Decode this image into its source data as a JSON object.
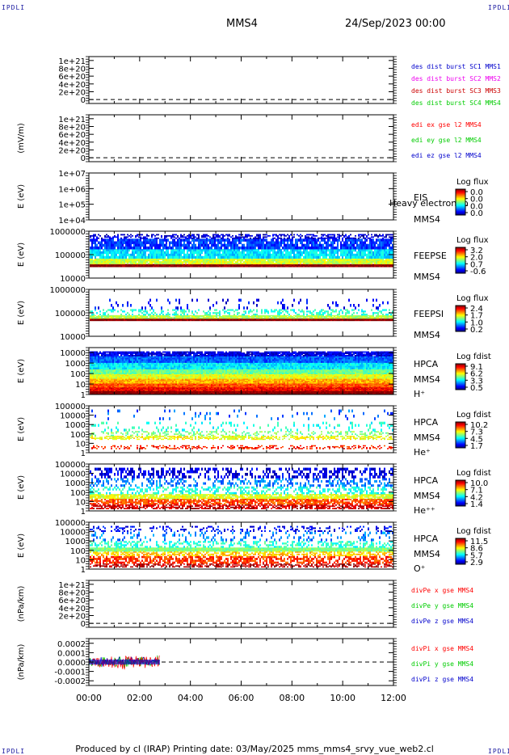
{
  "corner_label": "IPDLI",
  "header": {
    "spacecraft": "MMS4",
    "datetime": "24/Sep/2023 00:00"
  },
  "footer": "Produced by cl (IRAP)   Printing date: 03/May/2025   mms_mms4_srvy_vue_web2.cl",
  "colors": {
    "red": "#ff0000",
    "green": "#00cc00",
    "blue": "#0000cc",
    "magenta": "#ee00ee",
    "dashed": "#000000"
  },
  "chart_data": {
    "type": "multi-panel",
    "x_range": [
      "00:00",
      "12:00"
    ],
    "x_ticks": [
      "00:00",
      "02:00",
      "04:00",
      "06:00",
      "08:00",
      "10:00",
      "12:00"
    ],
    "panels": [
      {
        "type": "line",
        "ylabel": "",
        "ylim": [
          -1e+20,
          1.1e+21
        ],
        "ticks": [
          "1e+21",
          "8e+20",
          "6e+20",
          "4e+20",
          "2e+20",
          "0"
        ],
        "zero_line": "dashed",
        "legend": [
          {
            "text": "des dist burst SC1 MMS1",
            "color": "#0000cc"
          },
          {
            "text": "des dist burst SC2 MMS2",
            "color": "#ee00ee"
          },
          {
            "text": "des dist burst SC3 MMS3",
            "color": "#cc0000"
          },
          {
            "text": "des dist burst SC4 MMS4",
            "color": "#00cc00"
          }
        ]
      },
      {
        "type": "line",
        "ylabel": "(mV/m)",
        "ylim": [
          -1e+20,
          1.1e+21
        ],
        "ticks": [
          "1e+21",
          "8e+20",
          "6e+20",
          "4e+20",
          "2e+20",
          "0"
        ],
        "zero_line": "dashed",
        "legend": [
          {
            "text": "edi ex gse l2 MMS4",
            "color": "#ff0000"
          },
          {
            "text": "edi ey gse l2 MMS4",
            "color": "#00cc00"
          },
          {
            "text": "edi ez gse l2 MMS4",
            "color": "#0000cc"
          }
        ]
      },
      {
        "type": "heatmap",
        "ylabel": "E (eV)",
        "ylim": [
          10000.0,
          10000000.0
        ],
        "scale": "log",
        "ticks": [
          "1e+07",
          "1e+06",
          "1e+05",
          "1e+04"
        ],
        "side_labels": [
          "EIS",
          "MMS4"
        ],
        "overlay": "Heavy electron to",
        "colorbar": {
          "title": "Log flux",
          "ticks": [
            "0.0",
            "0.0",
            "0.0",
            "0.0"
          ]
        }
      },
      {
        "type": "heatmap",
        "ylabel": "E (eV)",
        "ylim": [
          10000,
          1000000
        ],
        "scale": "log",
        "ticks": [
          "1000000",
          "100000",
          "10000"
        ],
        "side_labels": [
          "FEEPSE",
          "MMS4"
        ],
        "colorbar": {
          "title": "Log flux",
          "ticks": [
            "3.2",
            "2.0",
            "0.7",
            "-0.6"
          ]
        }
      },
      {
        "type": "heatmap",
        "ylabel": "E (eV)",
        "ylim": [
          10000,
          1000000
        ],
        "scale": "log",
        "ticks": [
          "1000000",
          "100000",
          "10000"
        ],
        "side_labels": [
          "FEEPSI",
          "MMS4"
        ],
        "colorbar": {
          "title": "Log flux",
          "ticks": [
            "2.4",
            "1.7",
            "1.0",
            "0.2"
          ]
        }
      },
      {
        "type": "heatmap",
        "ylabel": "E (eV)",
        "ylim": [
          1,
          30000
        ],
        "scale": "log",
        "ticks": [
          "10000",
          "1000",
          "100",
          "10",
          "1"
        ],
        "side_labels": [
          "HPCA",
          "MMS4",
          "H⁺"
        ],
        "colorbar": {
          "title": "Log fdist",
          "ticks": [
            "9.1",
            "6.2",
            "3.3",
            "0.5"
          ]
        }
      },
      {
        "type": "heatmap",
        "ylabel": "E (eV)",
        "ylim": [
          1,
          100000
        ],
        "scale": "log",
        "ticks": [
          "100000",
          "10000",
          "1000",
          "100",
          "10",
          "1"
        ],
        "side_labels": [
          "HPCA",
          "MMS4",
          "He⁺"
        ],
        "colorbar": {
          "title": "Log fdist",
          "ticks": [
            "10.2",
            "7.3",
            "4.5",
            "1.7"
          ]
        }
      },
      {
        "type": "heatmap",
        "ylabel": "E (eV)",
        "ylim": [
          1,
          100000
        ],
        "scale": "log",
        "ticks": [
          "100000",
          "10000",
          "1000",
          "100",
          "10",
          "1"
        ],
        "side_labels": [
          "HPCA",
          "MMS4",
          "He⁺⁺"
        ],
        "colorbar": {
          "title": "Log fdist",
          "ticks": [
            "10.0",
            "7.1",
            "4.2",
            "1.4"
          ]
        }
      },
      {
        "type": "heatmap",
        "ylabel": "E (eV)",
        "ylim": [
          1,
          100000
        ],
        "scale": "log",
        "ticks": [
          "100000",
          "10000",
          "1000",
          "100",
          "10",
          "1"
        ],
        "side_labels": [
          "HPCA",
          "MMS4",
          "O⁺"
        ],
        "colorbar": {
          "title": "Log fdist",
          "ticks": [
            "11.5",
            "8.6",
            "5.7",
            "2.9"
          ]
        }
      },
      {
        "type": "line",
        "ylabel": "(nPa/km)",
        "ylim": [
          -1e+20,
          1.1e+21
        ],
        "ticks": [
          "1e+21",
          "8e+20",
          "6e+20",
          "4e+20",
          "2e+20",
          "0"
        ],
        "zero_line": "dashed",
        "legend": [
          {
            "text": "divPe x gse MMS4",
            "color": "#ff0000"
          },
          {
            "text": "divPe y gse MMS4",
            "color": "#00cc00"
          },
          {
            "text": "divPe z gse MMS4",
            "color": "#0000cc"
          }
        ]
      },
      {
        "type": "line",
        "ylabel": "(nPa/km)",
        "ylim": [
          -0.00025,
          0.00025
        ],
        "ticks": [
          "0.0002",
          "0.0001",
          "0.0000",
          "-0.0001",
          "-0.0002"
        ],
        "zero_line": "dashed",
        "data_end": "02:48",
        "legend": [
          {
            "text": "divPi x gse MMS4",
            "color": "#ff0000"
          },
          {
            "text": "divPi y gse MMS4",
            "color": "#00cc00"
          },
          {
            "text": "divPi z gse MMS4",
            "color": "#0000cc"
          }
        ]
      }
    ]
  }
}
